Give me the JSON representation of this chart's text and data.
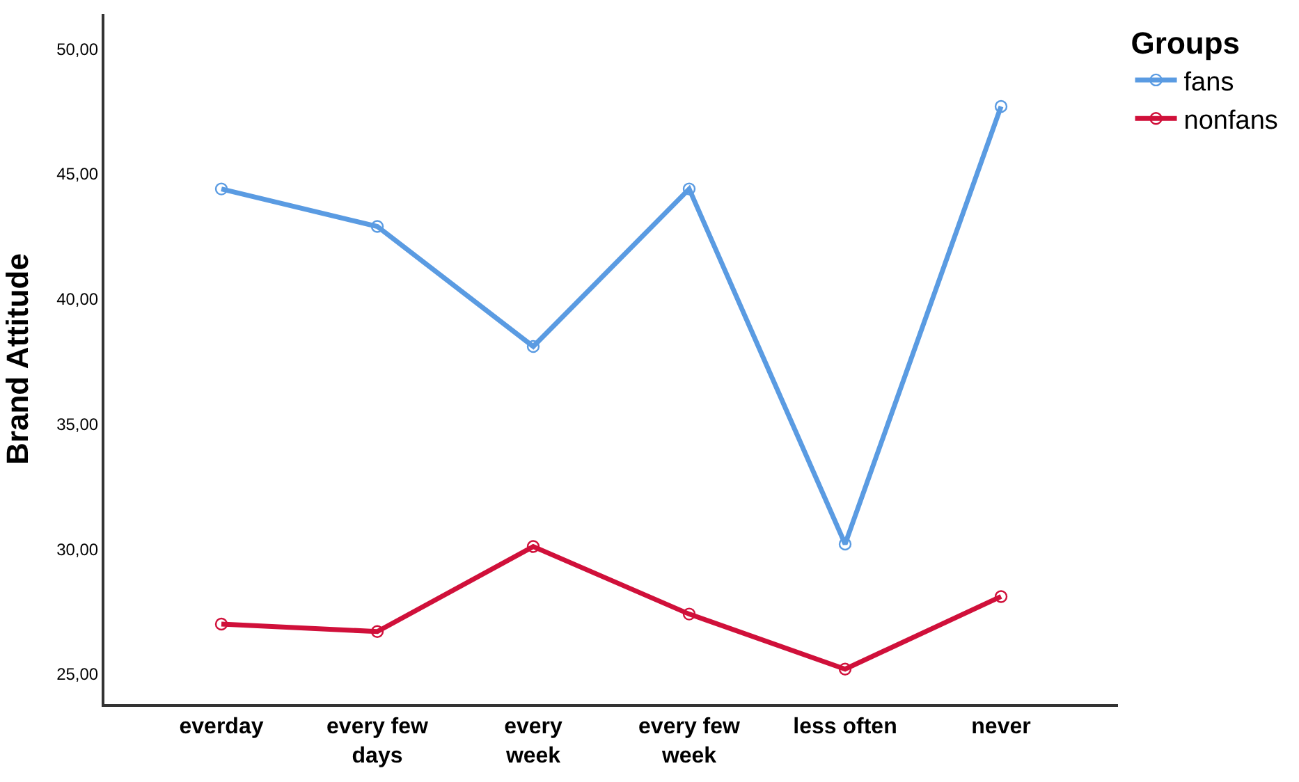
{
  "chart_data": {
    "type": "line",
    "ylabel": "Brand Attitude",
    "legend_title": "Groups",
    "categories": [
      "everday",
      "every few\ndays",
      "every\nweek",
      "every few\nweek",
      "less often",
      "never"
    ],
    "series": [
      {
        "name": "fans",
        "color": "#5a9be2",
        "values": [
          44.4,
          42.9,
          38.1,
          44.4,
          30.2,
          47.7
        ]
      },
      {
        "name": "nonfans",
        "color": "#d0103a",
        "values": [
          27.0,
          26.7,
          30.1,
          27.4,
          25.2,
          28.1
        ]
      }
    ],
    "ylim": [
      23.8,
      51.4
    ],
    "yticks": [
      {
        "value": 25,
        "label": "25,00"
      },
      {
        "value": 30,
        "label": "30,00"
      },
      {
        "value": 35,
        "label": "35,00"
      },
      {
        "value": 40,
        "label": "40,00"
      },
      {
        "value": 45,
        "label": "45,00"
      },
      {
        "value": 50,
        "label": "50,00"
      }
    ],
    "legend": "top right",
    "marker": "circle",
    "line_style": "solid"
  }
}
